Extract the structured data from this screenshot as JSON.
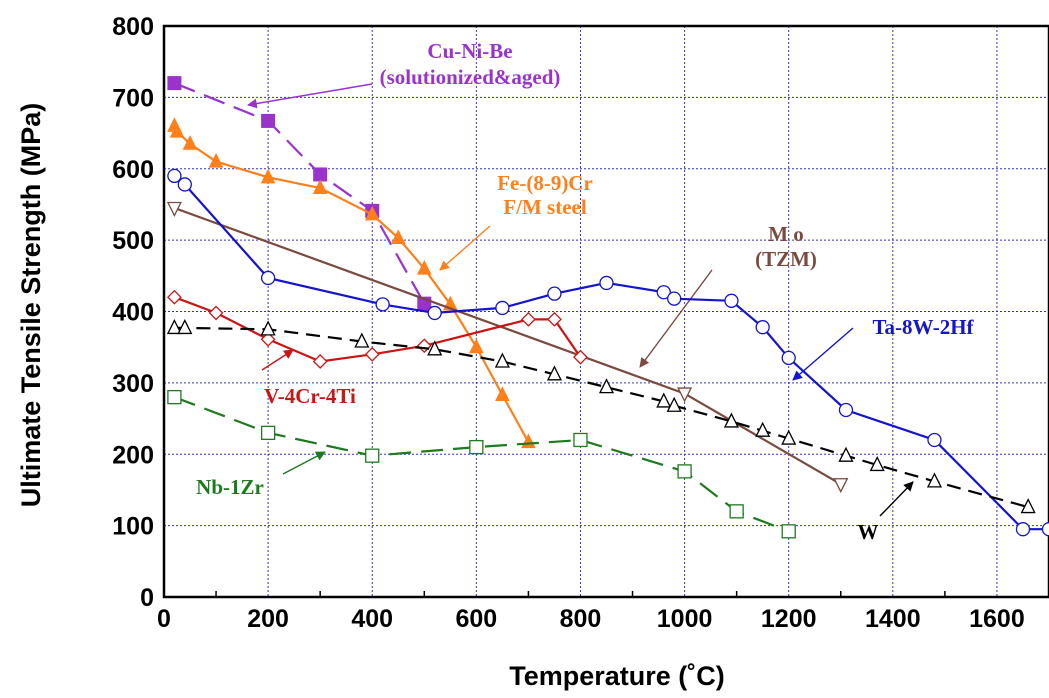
{
  "chart_data": {
    "type": "line",
    "xlabel": "Temperature (˚C)",
    "ylabel": "Ultimate Tensile Strength (MPa)",
    "xlim": [
      0,
      1700
    ],
    "ylim": [
      0,
      800
    ],
    "xticks": [
      0,
      200,
      400,
      600,
      800,
      1000,
      1200,
      1400,
      1600
    ],
    "yticks": [
      0,
      100,
      200,
      300,
      400,
      500,
      600,
      700,
      800
    ],
    "grid": true,
    "legend": "none",
    "series": [
      {
        "name": "Cu-Ni-Be (solutionized&aged)",
        "color": "#9933cc",
        "marker": "square-filled",
        "dash": "long-dash",
        "x": [
          20,
          200,
          300,
          400,
          500
        ],
        "y": [
          720,
          667,
          592,
          541,
          411
        ],
        "annotation": [
          "Cu-Ni-Be",
          "(solutionized&aged)"
        ]
      },
      {
        "name": "Fe-(8-9)Cr F/M steel",
        "color": "#ff7f1a",
        "marker": "triangle-filled",
        "dash": "solid",
        "x": [
          20,
          25,
          50,
          100,
          200,
          300,
          400,
          450,
          500,
          550,
          600,
          650,
          700
        ],
        "y": [
          660,
          652,
          635,
          610,
          588,
          573,
          536,
          503,
          460,
          410,
          350,
          283,
          217
        ],
        "annotation": [
          "Fe-(8-9)Cr",
          "F/M steel"
        ]
      },
      {
        "name": "Mo (TZM)",
        "color": "#7b4a3e",
        "marker": "triangle-down-open",
        "dash": "solid",
        "x": [
          20,
          1000,
          1300
        ],
        "y": [
          545,
          285,
          158
        ],
        "annotation": [
          "M o",
          "(TZM)"
        ]
      },
      {
        "name": "Ta-8W-2Hf",
        "color": "#1414cc",
        "marker": "circle-open",
        "dash": "solid",
        "x": [
          20,
          40,
          200,
          420,
          520,
          650,
          750,
          850,
          960,
          980,
          1090,
          1150,
          1200,
          1310,
          1480,
          1650,
          1700
        ],
        "y": [
          590,
          578,
          447,
          410,
          398,
          405,
          425,
          440,
          427,
          418,
          415,
          378,
          335,
          262,
          220,
          95,
          95
        ],
        "annotation": [
          "Ta-8W-2Hf"
        ]
      },
      {
        "name": "V-4Cr-4Ti",
        "color": "#cc1414",
        "marker": "diamond-open",
        "dash": "solid",
        "x": [
          20,
          100,
          200,
          300,
          400,
          500,
          700,
          750,
          800
        ],
        "y": [
          420,
          398,
          361,
          330,
          340,
          352,
          389,
          389,
          336
        ],
        "annotation": [
          "V-4Cr-4Ti"
        ]
      },
      {
        "name": "W",
        "color": "#000000",
        "marker": "triangle-open",
        "dash": "dash",
        "x": [
          20,
          40,
          200,
          380,
          520,
          650,
          750,
          850,
          960,
          980,
          1090,
          1150,
          1200,
          1310,
          1370,
          1480,
          1660
        ],
        "y": [
          377,
          377,
          375,
          358,
          347,
          330,
          312,
          294,
          274,
          268,
          246,
          233,
          222,
          198,
          185,
          162,
          126
        ],
        "annotation": [
          "W"
        ]
      },
      {
        "name": "Nb-1Zr",
        "color": "#1f7a1f",
        "marker": "square-open",
        "dash": "long-dash",
        "x": [
          20,
          200,
          400,
          600,
          800,
          1000,
          1100,
          1200
        ],
        "y": [
          280,
          230,
          198,
          210,
          220,
          176,
          120,
          92
        ],
        "annotation": [
          "Nb-1Zr"
        ]
      }
    ]
  }
}
